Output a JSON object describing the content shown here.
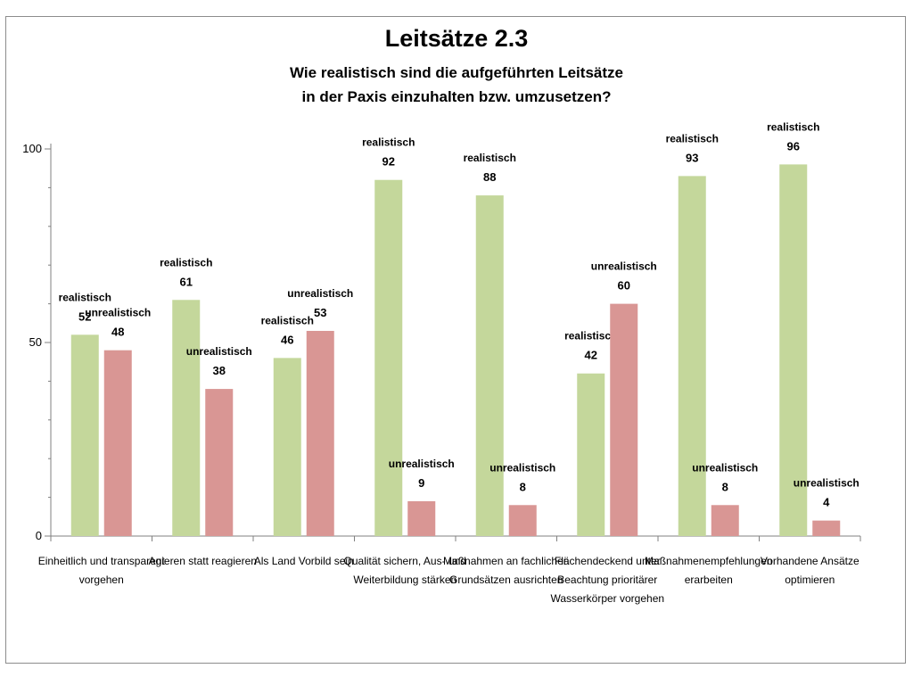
{
  "chart_data": {
    "type": "bar",
    "title": "Leitsätze 2.3",
    "subtitle_lines": [
      "Wie realistisch sind die aufgeführten Leitsätze",
      "in der Paxis einzuhalten bzw. umzusetzen?"
    ],
    "categories": [
      [
        "Einheitlich und transparent",
        "vorgehen"
      ],
      [
        "Agieren statt reagieren"
      ],
      [
        "Als Land Vorbild sein"
      ],
      [
        "Qualität sichern, Aus- und",
        "Weiterbildung stärken"
      ],
      [
        "Maßnahmen an fachlichen",
        "Grundsätzen ausrichten"
      ],
      [
        "Flächendeckend unter",
        "Beachtung prioritärer",
        "Wasserkörper vorgehen"
      ],
      [
        "Maßnahmenempfehlungen",
        "erarbeiten"
      ],
      [
        "Vorhandene Ansätze",
        "optimieren"
      ]
    ],
    "series": [
      {
        "name": "realistisch",
        "color": "#c4d79b",
        "values": [
          52,
          61,
          46,
          92,
          88,
          42,
          93,
          96
        ]
      },
      {
        "name": "unrealistisch",
        "color": "#d99694",
        "values": [
          48,
          38,
          53,
          9,
          8,
          60,
          8,
          4
        ]
      }
    ],
    "ylim": [
      0,
      100
    ],
    "yticks": [
      0,
      50,
      100
    ],
    "grid": false,
    "legend": "none"
  }
}
